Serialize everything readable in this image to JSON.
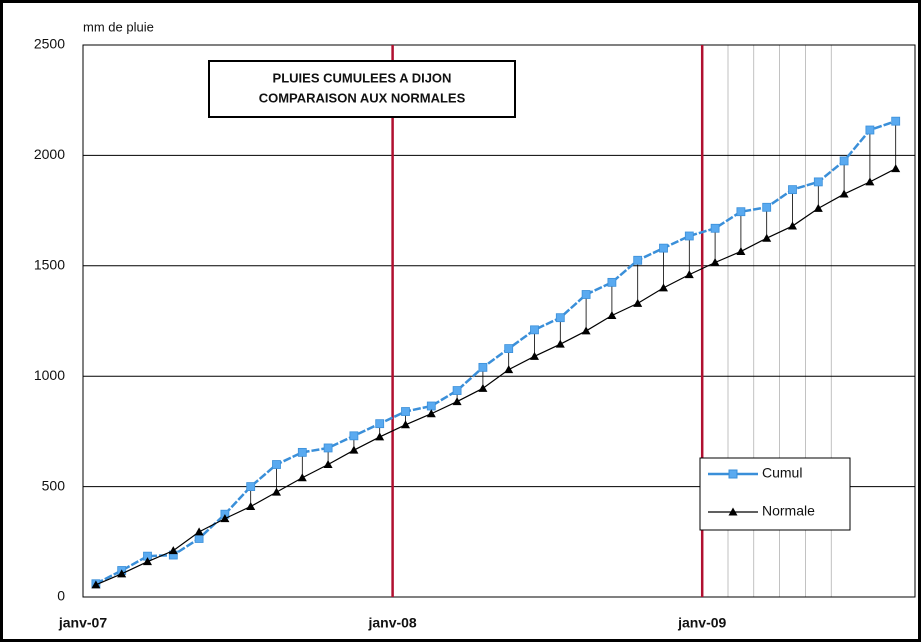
{
  "chart_data": {
    "type": "line",
    "title": "PLUIES CUMULEES A DIJON",
    "subtitle": "COMPARAISON AUX NORMALES",
    "y_label": "mm de pluie",
    "categories": [
      "janv-07",
      null,
      null,
      null,
      null,
      null,
      null,
      null,
      null,
      null,
      null,
      null,
      "janv-08",
      null,
      null,
      null,
      null,
      null,
      null,
      null,
      null,
      null,
      null,
      null,
      "janv-09",
      null,
      null,
      null,
      null,
      null,
      null,
      null
    ],
    "series": [
      {
        "name": "Cumul",
        "color": "#3a8fd9",
        "values": [
          60,
          120,
          185,
          190,
          265,
          375,
          500,
          600,
          655,
          675,
          730,
          785,
          840,
          865,
          935,
          1040,
          1125,
          1210,
          1265,
          1370,
          1425,
          1525,
          1580,
          1635,
          1670,
          1745,
          1765,
          1845,
          1880,
          1975,
          2115,
          2155
        ]
      },
      {
        "name": "Normale",
        "color": "#000000",
        "values": [
          55,
          105,
          160,
          210,
          295,
          355,
          410,
          475,
          540,
          600,
          665,
          725,
          780,
          830,
          885,
          945,
          1030,
          1090,
          1145,
          1205,
          1275,
          1330,
          1400,
          1460,
          1515,
          1565,
          1625,
          1680,
          1760,
          1825,
          1880,
          1940
        ]
      }
    ],
    "ylim": [
      0,
      2500
    ],
    "yticks": [
      0,
      500,
      1000,
      1500,
      2000,
      2500
    ],
    "grid": true
  }
}
